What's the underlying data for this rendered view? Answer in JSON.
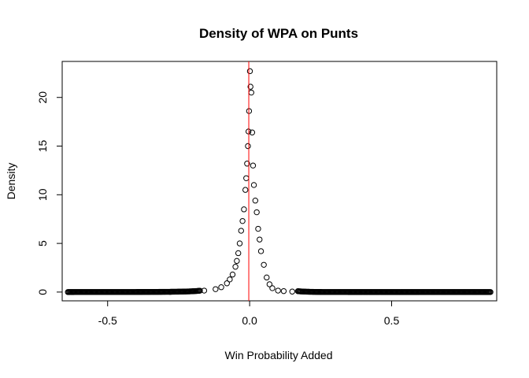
{
  "chart_data": {
    "type": "scatter",
    "title": "Density of WPA on Punts",
    "xlabel": "Win Probability Added",
    "ylabel": "Density",
    "xlim": [
      -0.66,
      0.87
    ],
    "ylim": [
      -0.9,
      23.7
    ],
    "xticks": [
      -0.5,
      0.0,
      0.5
    ],
    "xtick_labels": [
      "-0.5",
      "0.0",
      "0.5"
    ],
    "yticks": [
      0,
      5,
      10,
      15,
      20
    ],
    "ytick_labels": [
      "0",
      "5",
      "10",
      "15",
      "20"
    ],
    "grid": false,
    "reference_line": {
      "x": -0.003,
      "color": "#ff0000"
    },
    "marker": {
      "shape": "open-circle",
      "color": "#000000"
    },
    "series": [
      {
        "x_range": [
          -0.64,
          0.85
        ],
        "x_step": 0.003,
        "peak": -0.002,
        "amplitude": 22.7,
        "width_left": 0.03,
        "width_right": 0.03,
        "tail_left": 0.11,
        "tail_right": 0.06,
        "x": [
          -0.28,
          -0.2,
          -0.16,
          -0.12,
          -0.1,
          -0.08,
          -0.07,
          -0.06,
          -0.05,
          -0.045,
          -0.04,
          -0.035,
          -0.03,
          -0.025,
          -0.02,
          -0.015,
          -0.012,
          -0.009,
          -0.006,
          -0.004,
          -0.002,
          0.001,
          0.003,
          0.006,
          0.009,
          0.012,
          0.015,
          0.02,
          0.025,
          0.03,
          0.035,
          0.04,
          0.05,
          0.06,
          0.07,
          0.08,
          0.1,
          0.12,
          0.15
        ],
        "y": [
          0.02,
          0.08,
          0.15,
          0.3,
          0.5,
          0.9,
          1.3,
          1.8,
          2.6,
          3.2,
          4.0,
          5.0,
          6.3,
          7.3,
          8.5,
          10.5,
          11.7,
          13.2,
          15.0,
          16.5,
          18.6,
          22.7,
          21.1,
          20.5,
          16.4,
          13.0,
          11.0,
          9.4,
          8.2,
          6.5,
          5.4,
          4.2,
          2.8,
          1.5,
          0.8,
          0.4,
          0.15,
          0.1,
          0.05
        ]
      }
    ]
  }
}
